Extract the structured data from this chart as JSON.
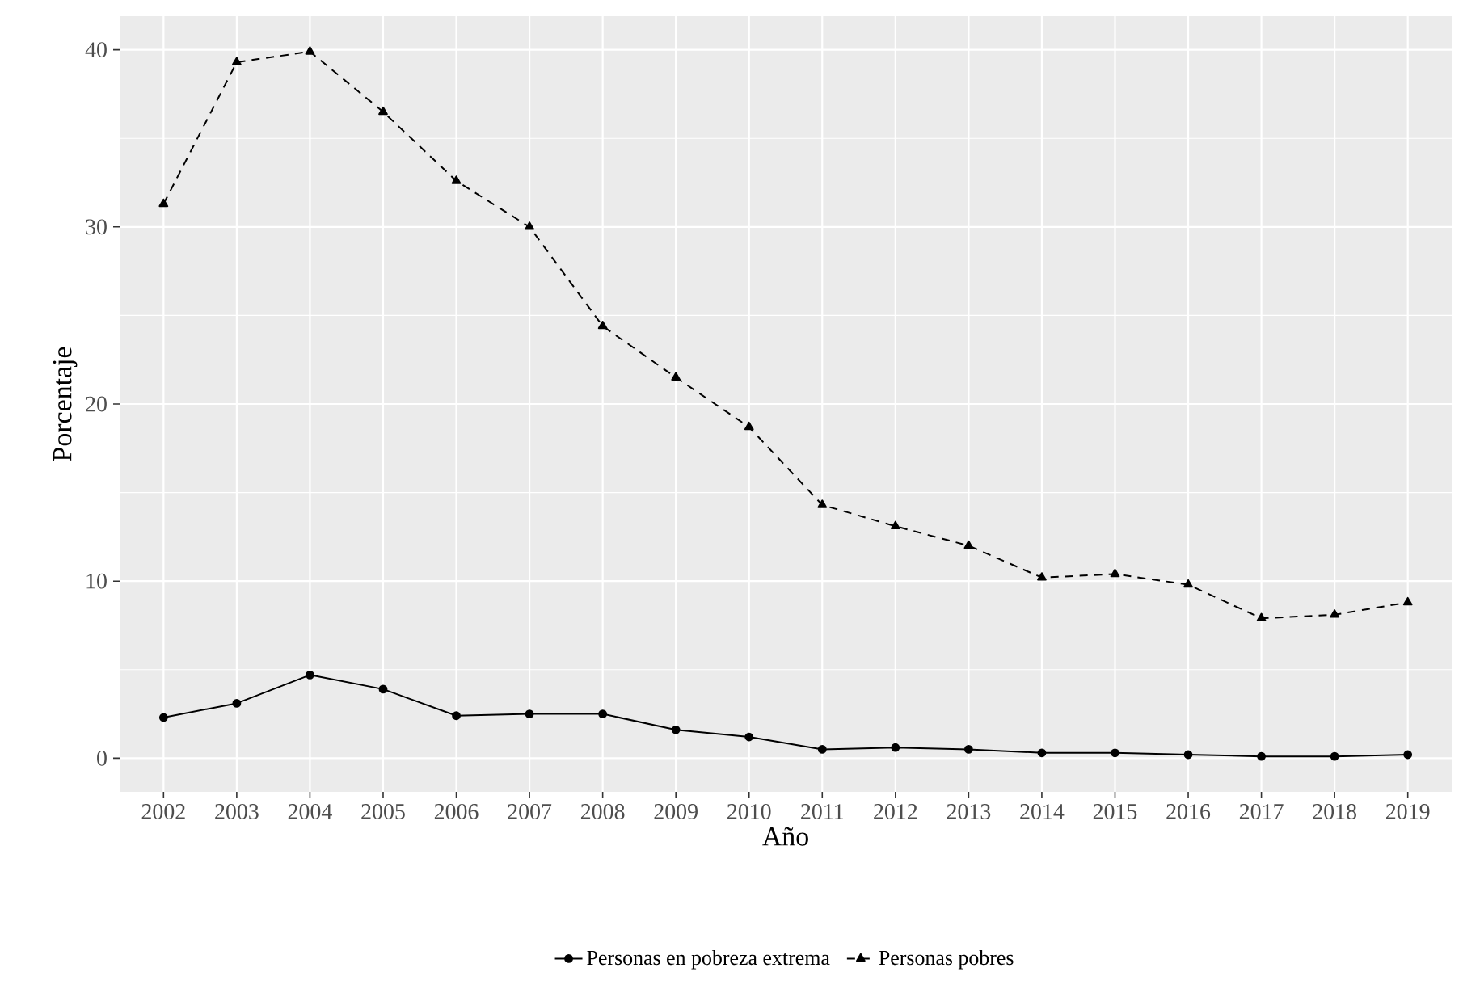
{
  "chart_data": {
    "type": "line",
    "xlabel": "Año",
    "ylabel": "Porcentaje",
    "categories": [
      "2002",
      "2003",
      "2004",
      "2005",
      "2006",
      "2007",
      "2008",
      "2009",
      "2010",
      "2011",
      "2012",
      "2013",
      "2014",
      "2015",
      "2016",
      "2017",
      "2018",
      "2019"
    ],
    "series": [
      {
        "name": "Personas en pobreza extrema",
        "color": "#000000",
        "marker": "circle",
        "line_style": "solid",
        "values": [
          2.3,
          3.1,
          4.7,
          3.9,
          2.4,
          2.5,
          2.5,
          1.6,
          1.2,
          0.5,
          0.6,
          0.5,
          0.3,
          0.3,
          0.2,
          0.1,
          0.1,
          0.2
        ]
      },
      {
        "name": "Personas pobres",
        "color": "#000000",
        "marker": "triangle",
        "line_style": "dashed",
        "values": [
          31.3,
          39.3,
          39.9,
          36.5,
          32.6,
          30.0,
          24.4,
          21.5,
          18.7,
          14.3,
          13.1,
          12.0,
          10.2,
          10.4,
          9.8,
          7.9,
          8.1,
          8.8
        ]
      }
    ],
    "ylim": [
      -1.9,
      41.9
    ],
    "yticks": [
      0,
      10,
      20,
      30,
      40
    ],
    "grid": true,
    "legend": "bottom"
  }
}
